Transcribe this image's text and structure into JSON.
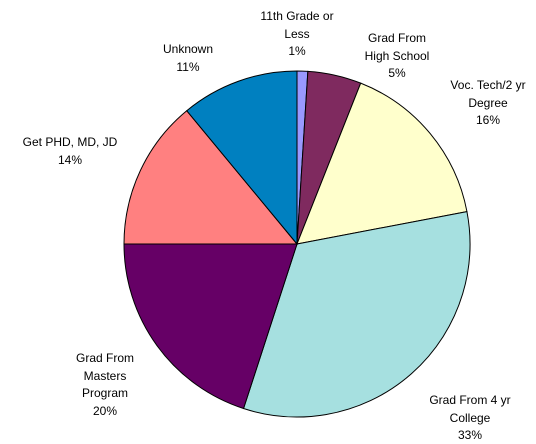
{
  "chart_data": {
    "type": "pie",
    "categories": [
      "11th Grade or\nLess",
      "Grad From\nHigh School",
      "Voc. Tech/2 yr\nDegree",
      "Grad From 4 yr\nCollege",
      "Grad From\nMasters\nProgram",
      "Get PHD, MD, JD",
      "Unknown"
    ],
    "values": [
      1,
      5,
      16,
      33,
      20,
      14,
      11
    ],
    "value_labels": [
      "1%",
      "5%",
      "16%",
      "33%",
      "20%",
      "14%",
      "11%"
    ],
    "colors": [
      "#9999ff",
      "#7f2a5f",
      "#ffffcc",
      "#a6e0e0",
      "#660066",
      "#ff8080",
      "#0080c0"
    ]
  }
}
